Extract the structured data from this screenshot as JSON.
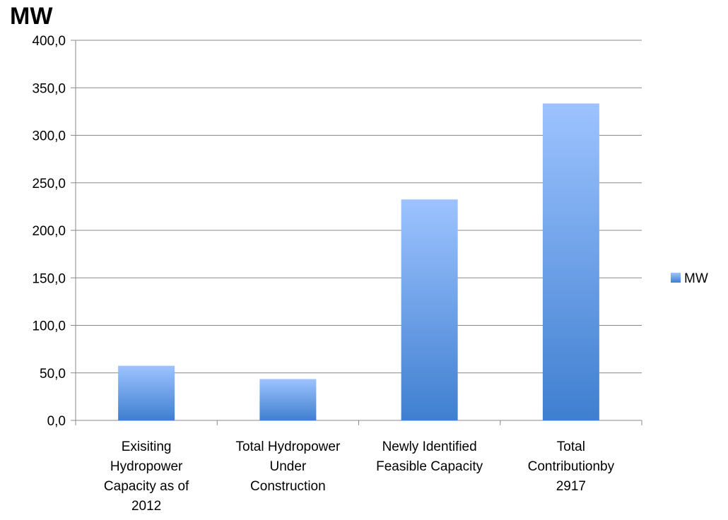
{
  "chart_data": {
    "type": "bar",
    "title": "MW",
    "xlabel": "",
    "ylabel": "",
    "categories": [
      [
        "Exisiting",
        "Hydropower",
        "Capacity as of",
        "2012"
      ],
      [
        "Total Hydropower",
        "Under",
        "Construction"
      ],
      [
        "Newly Identified",
        "Feasible Capacity"
      ],
      [
        "Total",
        "Contributionby",
        "2917"
      ]
    ],
    "series": [
      {
        "name": "MW",
        "values": [
          57.5,
          43.5,
          232.5,
          333.5
        ]
      }
    ],
    "ylim": [
      0,
      400
    ],
    "yticks": [
      "0,0",
      "50,0",
      "100,0",
      "150,0",
      "200,0",
      "250,0",
      "300,0",
      "350,0",
      "400,0"
    ],
    "grid": true,
    "legend": "right",
    "colors": {
      "bar_top": "#9dc3ff",
      "bar_bottom": "#3f7fd0",
      "grid": "#888888",
      "axis": "#888888"
    }
  }
}
